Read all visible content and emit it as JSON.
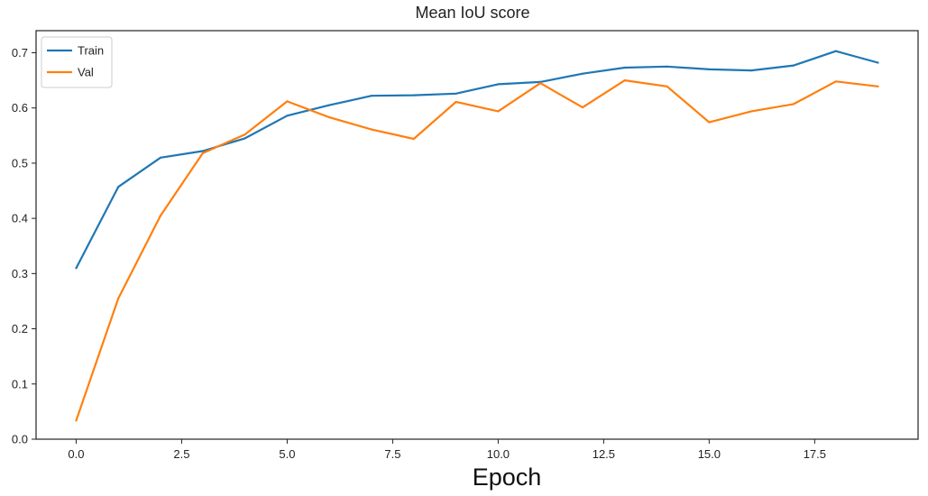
{
  "chart_data": {
    "type": "line",
    "title": "Mean IoU score",
    "xlabel": "Epoch",
    "ylabel": "",
    "xlim": [
      -0.95,
      19.95
    ],
    "ylim": [
      0.0,
      0.74
    ],
    "xticks": [
      0.0,
      2.5,
      5.0,
      7.5,
      10.0,
      12.5,
      15.0,
      17.5
    ],
    "xtick_labels": [
      "0.0",
      "2.5",
      "5.0",
      "7.5",
      "10.0",
      "12.5",
      "15.0",
      "17.5"
    ],
    "yticks": [
      0.0,
      0.1,
      0.2,
      0.3,
      0.4,
      0.5,
      0.6,
      0.7
    ],
    "ytick_labels": [
      "0.0",
      "0.1",
      "0.2",
      "0.3",
      "0.4",
      "0.5",
      "0.6",
      "0.7"
    ],
    "grid": false,
    "legend_position": "top-left",
    "x": [
      0,
      1,
      2,
      3,
      4,
      5,
      6,
      7,
      8,
      9,
      10,
      11,
      12,
      13,
      14,
      15,
      16,
      17,
      18,
      19
    ],
    "series": [
      {
        "name": "Train",
        "color": "#1f77b4",
        "values": [
          0.31,
          0.457,
          0.51,
          0.522,
          0.545,
          0.586,
          0.605,
          0.622,
          0.623,
          0.626,
          0.643,
          0.647,
          0.662,
          0.673,
          0.675,
          0.67,
          0.668,
          0.677,
          0.703,
          0.682
        ]
      },
      {
        "name": "Val",
        "color": "#ff7f0e",
        "values": [
          0.034,
          0.255,
          0.405,
          0.518,
          0.552,
          0.612,
          0.583,
          0.561,
          0.544,
          0.611,
          0.594,
          0.645,
          0.601,
          0.65,
          0.639,
          0.574,
          0.594,
          0.607,
          0.648,
          0.639
        ]
      }
    ]
  }
}
